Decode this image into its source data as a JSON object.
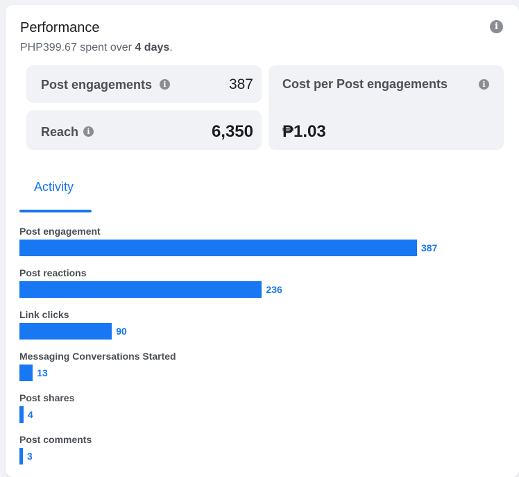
{
  "header": {
    "title": "Performance",
    "amount": "PHP399.67",
    "spent_text": " spent over ",
    "days": "4 days",
    "period": "."
  },
  "tiles": {
    "post_engagements": {
      "label": "Post engagements",
      "value": "387"
    },
    "reach": {
      "label": "Reach",
      "value": "6,350"
    },
    "cost_per": {
      "label": "Cost per Post engagements",
      "value": "₱1.03"
    }
  },
  "tabs": {
    "activity": "Activity"
  },
  "chart_data": {
    "type": "bar",
    "orientation": "horizontal",
    "categories": [
      "Post engagement",
      "Post reactions",
      "Link clicks",
      "Messaging Conversations Started",
      "Post shares",
      "Post comments"
    ],
    "values": [
      387,
      236,
      90,
      13,
      4,
      3
    ],
    "color": "#1877f2"
  },
  "colors": {
    "accent": "#1877f2",
    "tile_bg": "#f0f2f5"
  },
  "icons": {
    "info": "info-icon"
  }
}
